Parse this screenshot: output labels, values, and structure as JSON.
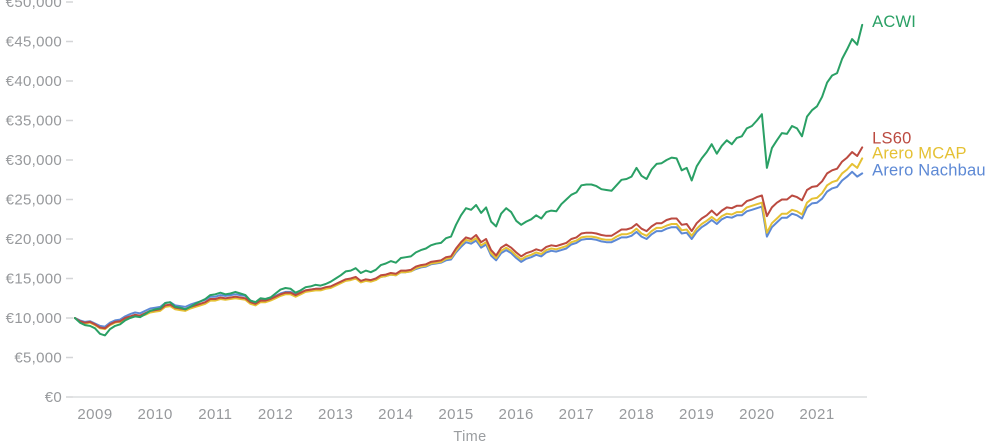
{
  "chart_data": {
    "type": "line",
    "title": "",
    "xlabel": "Time",
    "ylabel": "",
    "currency": "EUR",
    "unit": "EUR, values stored in thousands",
    "start_value_eur": 10000,
    "x_start": "2008-09",
    "x_end": "2021-10",
    "x_frequency": "monthly",
    "grid": false,
    "legend_position": "line-end-labels",
    "ylim_thousands": [
      0,
      50
    ],
    "y_tick_step_eur": 5000,
    "y_tick_labels": [
      "€0",
      "€5,000",
      "€10,000",
      "€15,000",
      "€20,000",
      "€25,000",
      "€30,000",
      "€35,000",
      "€40,000",
      "€45,000",
      "€50,000"
    ],
    "x_tick_labels": [
      "2009",
      "2010",
      "2011",
      "2012",
      "2013",
      "2014",
      "2015",
      "2016",
      "2017",
      "2018",
      "2019",
      "2020",
      "2021"
    ],
    "series": [
      {
        "name": "ACWI",
        "color": "#2aa065",
        "label_dy": -3,
        "values": [
          10.0,
          9.4,
          9.1,
          9.0,
          8.7,
          8.0,
          7.8,
          8.6,
          9.0,
          9.2,
          9.7,
          10.0,
          10.2,
          10.1,
          10.5,
          10.9,
          11.1,
          11.2,
          11.9,
          12.0,
          11.4,
          11.3,
          11.1,
          11.4,
          11.8,
          12.1,
          12.4,
          12.9,
          13.0,
          13.2,
          13.0,
          13.1,
          13.3,
          13.1,
          12.9,
          12.2,
          12.0,
          12.5,
          12.4,
          12.6,
          13.1,
          13.6,
          13.8,
          13.7,
          13.2,
          13.5,
          13.9,
          14.0,
          14.2,
          14.1,
          14.3,
          14.6,
          15.0,
          15.4,
          15.9,
          16.0,
          16.3,
          15.7,
          16.0,
          15.8,
          16.1,
          16.7,
          16.9,
          17.2,
          17.0,
          17.6,
          17.7,
          17.8,
          18.3,
          18.6,
          18.8,
          19.2,
          19.4,
          19.5,
          20.1,
          20.3,
          21.8,
          23.0,
          23.9,
          23.7,
          24.3,
          23.3,
          24.0,
          22.2,
          21.6,
          23.2,
          23.9,
          23.4,
          22.3,
          21.8,
          22.2,
          22.5,
          23.0,
          22.6,
          23.4,
          23.6,
          23.5,
          24.4,
          25.0,
          25.6,
          25.9,
          26.8,
          26.9,
          26.9,
          26.7,
          26.3,
          26.2,
          26.1,
          26.8,
          27.5,
          27.6,
          27.9,
          29.0,
          28.0,
          27.6,
          28.8,
          29.5,
          29.6,
          30.0,
          30.3,
          30.2,
          28.7,
          29.0,
          27.4,
          29.2,
          30.2,
          31.0,
          32.0,
          30.8,
          31.8,
          32.5,
          32.0,
          32.8,
          33.0,
          34.0,
          34.3,
          35.0,
          35.8,
          29.0,
          31.5,
          32.5,
          33.4,
          33.3,
          34.3,
          34.0,
          33.0,
          35.5,
          36.3,
          36.8,
          38.0,
          39.8,
          40.7,
          41.0,
          42.8,
          44.0,
          45.3,
          44.6,
          47.1
        ]
      },
      {
        "name": "LS60",
        "color": "#bb4a40",
        "label_dy": -9,
        "values": [
          10.0,
          9.6,
          9.4,
          9.5,
          9.2,
          8.8,
          8.7,
          9.2,
          9.5,
          9.6,
          10.0,
          10.2,
          10.4,
          10.3,
          10.6,
          10.9,
          11.0,
          11.1,
          11.6,
          11.7,
          11.3,
          11.2,
          11.1,
          11.4,
          11.6,
          11.8,
          12.0,
          12.4,
          12.4,
          12.6,
          12.5,
          12.6,
          12.7,
          12.6,
          12.5,
          12.0,
          11.8,
          12.2,
          12.2,
          12.4,
          12.7,
          13.0,
          13.2,
          13.2,
          12.9,
          13.2,
          13.5,
          13.6,
          13.7,
          13.7,
          13.9,
          14.0,
          14.3,
          14.6,
          14.9,
          15.0,
          15.2,
          14.7,
          14.9,
          14.8,
          15.0,
          15.4,
          15.5,
          15.7,
          15.6,
          16.0,
          16.0,
          16.1,
          16.5,
          16.7,
          16.8,
          17.1,
          17.2,
          17.3,
          17.7,
          17.8,
          18.8,
          19.6,
          20.2,
          20.0,
          20.5,
          19.6,
          20.0,
          18.6,
          17.9,
          18.9,
          19.3,
          18.9,
          18.3,
          17.8,
          18.2,
          18.4,
          18.7,
          18.5,
          19.0,
          19.2,
          19.1,
          19.3,
          19.5,
          20.0,
          20.2,
          20.7,
          20.8,
          20.8,
          20.7,
          20.5,
          20.4,
          20.4,
          20.8,
          21.2,
          21.2,
          21.4,
          21.9,
          21.3,
          21.0,
          21.6,
          22.0,
          22.0,
          22.4,
          22.6,
          22.6,
          21.8,
          21.9,
          21.0,
          22.0,
          22.6,
          23.0,
          23.6,
          23.0,
          23.6,
          24.0,
          23.9,
          24.2,
          24.2,
          24.8,
          25.0,
          25.3,
          25.5,
          22.9,
          24.0,
          24.6,
          25.0,
          25.0,
          25.5,
          25.3,
          24.9,
          26.2,
          26.6,
          26.7,
          27.3,
          28.3,
          28.7,
          28.9,
          29.8,
          30.3,
          31.0,
          30.5,
          31.6
        ]
      },
      {
        "name": "Arero MCAP",
        "color": "#e5c134",
        "label_dy": -5,
        "values": [
          10.0,
          9.5,
          9.3,
          9.4,
          9.1,
          8.7,
          8.6,
          9.1,
          9.4,
          9.5,
          9.9,
          10.1,
          10.3,
          10.2,
          10.4,
          10.7,
          10.8,
          10.9,
          11.4,
          11.5,
          11.1,
          11.0,
          10.9,
          11.2,
          11.4,
          11.6,
          11.8,
          12.2,
          12.2,
          12.4,
          12.3,
          12.4,
          12.5,
          12.4,
          12.3,
          11.8,
          11.6,
          12.0,
          12.0,
          12.2,
          12.5,
          12.8,
          13.0,
          13.0,
          12.7,
          13.0,
          13.3,
          13.4,
          13.5,
          13.5,
          13.7,
          13.8,
          14.1,
          14.4,
          14.7,
          14.8,
          15.0,
          14.5,
          14.7,
          14.6,
          14.8,
          15.2,
          15.3,
          15.5,
          15.4,
          15.8,
          15.8,
          15.9,
          16.3,
          16.5,
          16.6,
          16.9,
          17.0,
          17.1,
          17.5,
          17.6,
          18.5,
          19.3,
          19.9,
          19.7,
          20.1,
          19.2,
          19.6,
          18.2,
          17.6,
          18.5,
          18.9,
          18.5,
          17.9,
          17.4,
          17.8,
          18.0,
          18.3,
          18.1,
          18.6,
          18.8,
          18.7,
          18.9,
          19.1,
          19.6,
          19.8,
          20.2,
          20.3,
          20.3,
          20.2,
          20.0,
          19.9,
          19.9,
          20.3,
          20.6,
          20.6,
          20.8,
          21.3,
          20.7,
          20.4,
          21.0,
          21.4,
          21.4,
          21.7,
          21.9,
          21.9,
          21.1,
          21.2,
          20.4,
          21.3,
          21.9,
          22.3,
          22.8,
          22.3,
          22.9,
          23.2,
          23.1,
          23.4,
          23.4,
          24.0,
          24.2,
          24.4,
          24.6,
          20.8,
          22.0,
          22.6,
          23.2,
          23.2,
          23.7,
          23.5,
          23.1,
          24.6,
          25.1,
          25.2,
          25.8,
          26.8,
          27.2,
          27.4,
          28.3,
          28.8,
          29.5,
          29.0,
          30.2
        ]
      },
      {
        "name": "Arero Nachbau",
        "color": "#5d89d5",
        "label_dy": -3,
        "values": [
          10.0,
          9.7,
          9.5,
          9.6,
          9.3,
          9.0,
          8.9,
          9.4,
          9.7,
          9.8,
          10.2,
          10.5,
          10.7,
          10.6,
          10.9,
          11.2,
          11.3,
          11.4,
          11.9,
          12.0,
          11.6,
          11.5,
          11.4,
          11.7,
          11.9,
          12.1,
          12.3,
          12.7,
          12.7,
          12.9,
          12.8,
          12.9,
          13.0,
          12.9,
          12.8,
          12.2,
          12.0,
          12.4,
          12.4,
          12.6,
          12.8,
          13.1,
          13.3,
          13.3,
          13.0,
          13.2,
          13.5,
          13.6,
          13.7,
          13.7,
          13.8,
          13.9,
          14.2,
          14.5,
          14.8,
          14.9,
          15.1,
          14.6,
          14.8,
          14.7,
          14.9,
          15.2,
          15.3,
          15.5,
          15.4,
          15.8,
          15.8,
          15.9,
          16.2,
          16.4,
          16.5,
          16.8,
          16.9,
          17.0,
          17.3,
          17.4,
          18.3,
          19.0,
          19.6,
          19.4,
          19.8,
          18.9,
          19.3,
          17.9,
          17.3,
          18.2,
          18.6,
          18.2,
          17.6,
          17.1,
          17.5,
          17.7,
          18.0,
          17.8,
          18.3,
          18.5,
          18.4,
          18.6,
          18.8,
          19.3,
          19.5,
          19.9,
          20.0,
          20.0,
          19.9,
          19.7,
          19.6,
          19.6,
          19.9,
          20.2,
          20.2,
          20.4,
          20.9,
          20.3,
          20.0,
          20.6,
          21.0,
          21.0,
          21.3,
          21.5,
          21.5,
          20.7,
          20.8,
          20.0,
          20.9,
          21.5,
          21.9,
          22.4,
          21.9,
          22.5,
          22.8,
          22.7,
          23.0,
          23.0,
          23.5,
          23.7,
          23.9,
          24.1,
          20.3,
          21.5,
          22.1,
          22.7,
          22.7,
          23.2,
          23.0,
          22.6,
          24.0,
          24.5,
          24.6,
          25.1,
          26.0,
          26.4,
          26.6,
          27.4,
          27.9,
          28.5,
          27.9,
          28.3
        ]
      }
    ]
  },
  "axis_style": {
    "text_color": "#97999c",
    "axis_line_color": "#dcdddf",
    "tick_mark_color": "#d4d5d7"
  }
}
